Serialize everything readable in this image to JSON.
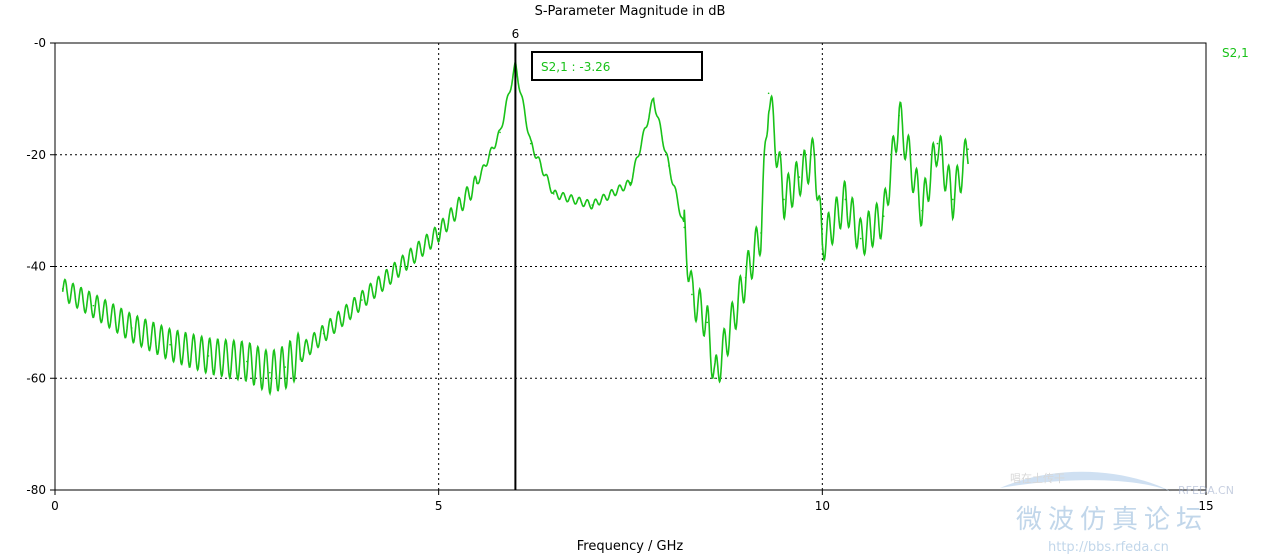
{
  "chart_data": {
    "type": "line",
    "title": "S-Parameter Magnitude in dB",
    "xlabel": "Frequency / GHz",
    "ylabel": "",
    "xlim": [
      0,
      15
    ],
    "ylim": [
      -80,
      0
    ],
    "x_ticks": [
      0,
      5,
      10,
      15
    ],
    "x_tick_labels": [
      "0",
      "5",
      "10",
      "15"
    ],
    "y_ticks": [
      0,
      -20,
      -40,
      -60,
      -80
    ],
    "y_tick_labels": [
      "-0",
      "-20",
      "-40",
      "-60",
      "-80"
    ],
    "grid": true,
    "legend_position": "top-right",
    "marker": {
      "x": 6,
      "label": "6",
      "readout": "S2,1 : -3.26"
    },
    "series": [
      {
        "name": "S2,1",
        "color": "#19c219",
        "x": [
          0.1,
          0.5,
          1.0,
          1.5,
          2.0,
          2.5,
          2.8,
          3.0,
          3.5,
          4.0,
          4.5,
          5.0,
          5.5,
          5.8,
          6.0,
          6.2,
          6.5,
          7.0,
          7.5,
          7.8,
          8.0,
          8.2,
          8.3,
          8.5,
          8.6,
          9.0,
          9.2,
          9.3,
          9.5,
          9.7,
          9.9,
          10.0,
          10.3,
          10.5,
          10.8,
          11.0,
          11.3,
          11.5,
          11.7,
          11.9
        ],
        "y": [
          -44,
          -47,
          -51,
          -54,
          -56,
          -57,
          -59,
          -58,
          -52,
          -46,
          -40,
          -34,
          -25,
          -16,
          -4,
          -18,
          -27,
          -29,
          -25,
          -10,
          -22,
          -33,
          -45,
          -50,
          -60,
          -42,
          -34,
          -9,
          -28,
          -24,
          -20,
          -36,
          -28,
          -35,
          -31,
          -13,
          -30,
          -18,
          -28,
          -19
        ]
      }
    ]
  },
  "watermark": {
    "line1": "唱在土传干",
    "line2": "微波仿真论坛",
    "line3": "http://bbs.rfeda.cn",
    "brand": "RFEDA.CN"
  }
}
